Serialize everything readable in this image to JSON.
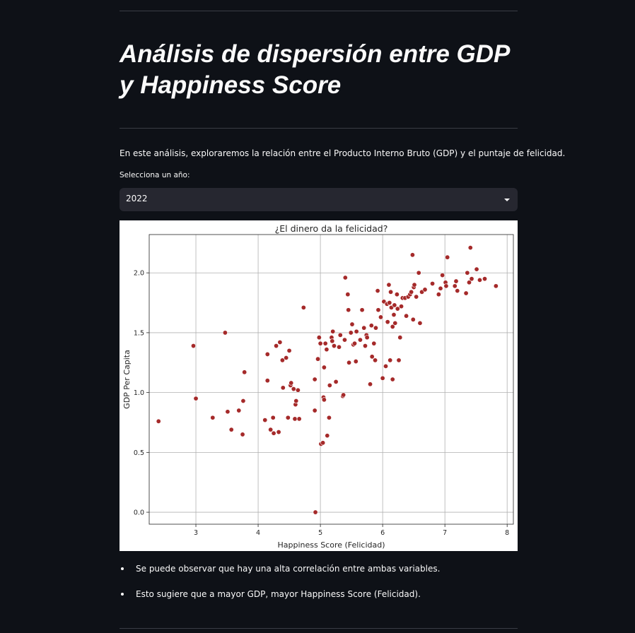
{
  "page": {
    "title": "Análisis de dispersión entre GDP y Happiness Score",
    "intro": "En este análisis, exploraremos la relación entre el Producto Interno Bruto (GDP) y el puntaje de felicidad.",
    "select_label": "Selecciona un año:",
    "selected_year": "2022",
    "bullets": [
      "Se puede observar que hay una alta correlación entre ambas variables.",
      "Esto sugiere que a mayor GDP, mayor Happiness Score (Felicidad)."
    ]
  },
  "theme": {
    "background": "#0e1117",
    "select_bg": "#262730",
    "point_color": "#a52a2a"
  },
  "chart_data": {
    "type": "scatter",
    "title": "¿El dinero da la felicidad?",
    "xlabel": "Happiness Score (Felicidad)",
    "ylabel": "GDP Per Capita",
    "xlim": [
      2.25,
      8.1
    ],
    "ylim": [
      -0.1,
      2.32
    ],
    "xticks": [
      3,
      4,
      5,
      6,
      7,
      8
    ],
    "yticks": [
      0.0,
      0.5,
      1.0,
      1.5,
      2.0
    ],
    "grid": true,
    "points": [
      [
        2.4,
        0.76
      ],
      [
        2.96,
        1.39
      ],
      [
        3.0,
        0.95
      ],
      [
        3.27,
        0.79
      ],
      [
        3.47,
        1.5
      ],
      [
        3.51,
        0.84
      ],
      [
        3.57,
        0.69
      ],
      [
        3.69,
        0.85
      ],
      [
        3.75,
        0.65
      ],
      [
        3.76,
        0.93
      ],
      [
        3.78,
        1.17
      ],
      [
        4.11,
        0.77
      ],
      [
        4.15,
        1.32
      ],
      [
        4.15,
        1.1
      ],
      [
        4.2,
        0.69
      ],
      [
        4.24,
        0.79
      ],
      [
        4.25,
        0.66
      ],
      [
        4.29,
        1.39
      ],
      [
        4.33,
        0.67
      ],
      [
        4.35,
        1.42
      ],
      [
        4.39,
        1.27
      ],
      [
        4.4,
        1.04
      ],
      [
        4.45,
        1.29
      ],
      [
        4.48,
        0.79
      ],
      [
        4.5,
        1.35
      ],
      [
        4.52,
        1.06
      ],
      [
        4.53,
        1.08
      ],
      [
        4.57,
        1.03
      ],
      [
        4.59,
        0.78
      ],
      [
        4.6,
        0.9
      ],
      [
        4.61,
        0.93
      ],
      [
        4.64,
        1.02
      ],
      [
        4.66,
        0.78
      ],
      [
        4.73,
        1.71
      ],
      [
        4.91,
        0.85
      ],
      [
        4.91,
        1.11
      ],
      [
        4.92,
        0.0
      ],
      [
        4.96,
        1.28
      ],
      [
        4.98,
        1.46
      ],
      [
        5.0,
        1.41
      ],
      [
        5.01,
        0.57
      ],
      [
        5.04,
        0.58
      ],
      [
        5.05,
        0.96
      ],
      [
        5.06,
        0.94
      ],
      [
        5.06,
        1.21
      ],
      [
        5.08,
        1.41
      ],
      [
        5.1,
        1.36
      ],
      [
        5.11,
        0.64
      ],
      [
        5.14,
        0.79
      ],
      [
        5.15,
        1.06
      ],
      [
        5.18,
        1.46
      ],
      [
        5.19,
        1.43
      ],
      [
        5.2,
        1.51
      ],
      [
        5.22,
        1.39
      ],
      [
        5.25,
        1.09
      ],
      [
        5.3,
        1.38
      ],
      [
        5.32,
        1.48
      ],
      [
        5.36,
        0.97
      ],
      [
        5.37,
        0.98
      ],
      [
        5.39,
        1.44
      ],
      [
        5.4,
        1.96
      ],
      [
        5.44,
        1.82
      ],
      [
        5.45,
        1.69
      ],
      [
        5.46,
        1.25
      ],
      [
        5.49,
        1.5
      ],
      [
        5.51,
        1.57
      ],
      [
        5.53,
        1.4
      ],
      [
        5.55,
        1.41
      ],
      [
        5.57,
        1.26
      ],
      [
        5.58,
        1.51
      ],
      [
        5.64,
        1.44
      ],
      [
        5.67,
        1.69
      ],
      [
        5.7,
        1.54
      ],
      [
        5.72,
        1.39
      ],
      [
        5.74,
        1.48
      ],
      [
        5.75,
        1.46
      ],
      [
        5.8,
        1.07
      ],
      [
        5.82,
        1.56
      ],
      [
        5.83,
        1.3
      ],
      [
        5.86,
        1.41
      ],
      [
        5.88,
        1.27
      ],
      [
        5.89,
        1.54
      ],
      [
        5.92,
        1.85
      ],
      [
        5.93,
        1.69
      ],
      [
        5.97,
        1.63
      ],
      [
        6.0,
        1.12
      ],
      [
        6.02,
        1.76
      ],
      [
        6.05,
        1.22
      ],
      [
        6.07,
        1.74
      ],
      [
        6.08,
        1.59
      ],
      [
        6.1,
        1.9
      ],
      [
        6.11,
        1.75
      ],
      [
        6.12,
        1.27
      ],
      [
        6.13,
        1.84
      ],
      [
        6.14,
        1.71
      ],
      [
        6.16,
        1.55
      ],
      [
        6.16,
        1.11
      ],
      [
        6.18,
        1.65
      ],
      [
        6.19,
        1.73
      ],
      [
        6.2,
        1.58
      ],
      [
        6.23,
        1.82
      ],
      [
        6.24,
        1.7
      ],
      [
        6.26,
        1.27
      ],
      [
        6.28,
        1.46
      ],
      [
        6.3,
        1.72
      ],
      [
        6.32,
        1.79
      ],
      [
        6.36,
        1.79
      ],
      [
        6.38,
        1.64
      ],
      [
        6.41,
        1.8
      ],
      [
        6.44,
        1.82
      ],
      [
        6.46,
        1.84
      ],
      [
        6.48,
        2.15
      ],
      [
        6.49,
        1.61
      ],
      [
        6.5,
        1.88
      ],
      [
        6.51,
        1.9
      ],
      [
        6.54,
        1.8
      ],
      [
        6.58,
        2.0
      ],
      [
        6.6,
        1.58
      ],
      [
        6.63,
        1.84
      ],
      [
        6.68,
        1.86
      ],
      [
        6.8,
        1.91
      ],
      [
        6.9,
        1.82
      ],
      [
        6.93,
        1.87
      ],
      [
        6.96,
        1.98
      ],
      [
        7.01,
        1.92
      ],
      [
        7.02,
        1.89
      ],
      [
        7.04,
        2.13
      ],
      [
        7.16,
        1.89
      ],
      [
        7.18,
        1.93
      ],
      [
        7.2,
        1.85
      ],
      [
        7.34,
        1.83
      ],
      [
        7.36,
        2.0
      ],
      [
        7.39,
        1.92
      ],
      [
        7.41,
        2.21
      ],
      [
        7.43,
        1.95
      ],
      [
        7.51,
        2.03
      ],
      [
        7.56,
        1.94
      ],
      [
        7.64,
        1.95
      ],
      [
        7.82,
        1.89
      ]
    ]
  }
}
